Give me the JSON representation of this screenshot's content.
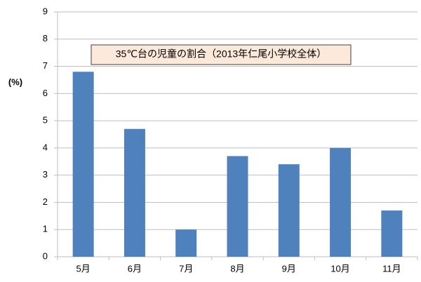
{
  "chart_data": {
    "type": "bar",
    "title": "35℃台の児童の割合（2013年仁尾小学校全体）",
    "y_label": "(%)",
    "categories": [
      "5月",
      "6月",
      "7月",
      "8月",
      "9月",
      "10月",
      "11月"
    ],
    "values": [
      6.8,
      4.7,
      1.0,
      3.7,
      3.4,
      4.0,
      1.7
    ],
    "color": "#4f81bd",
    "ylim": [
      0,
      9
    ],
    "yticks": [
      0,
      1,
      2,
      3,
      4,
      5,
      6,
      7,
      8,
      9
    ],
    "grid": true
  }
}
